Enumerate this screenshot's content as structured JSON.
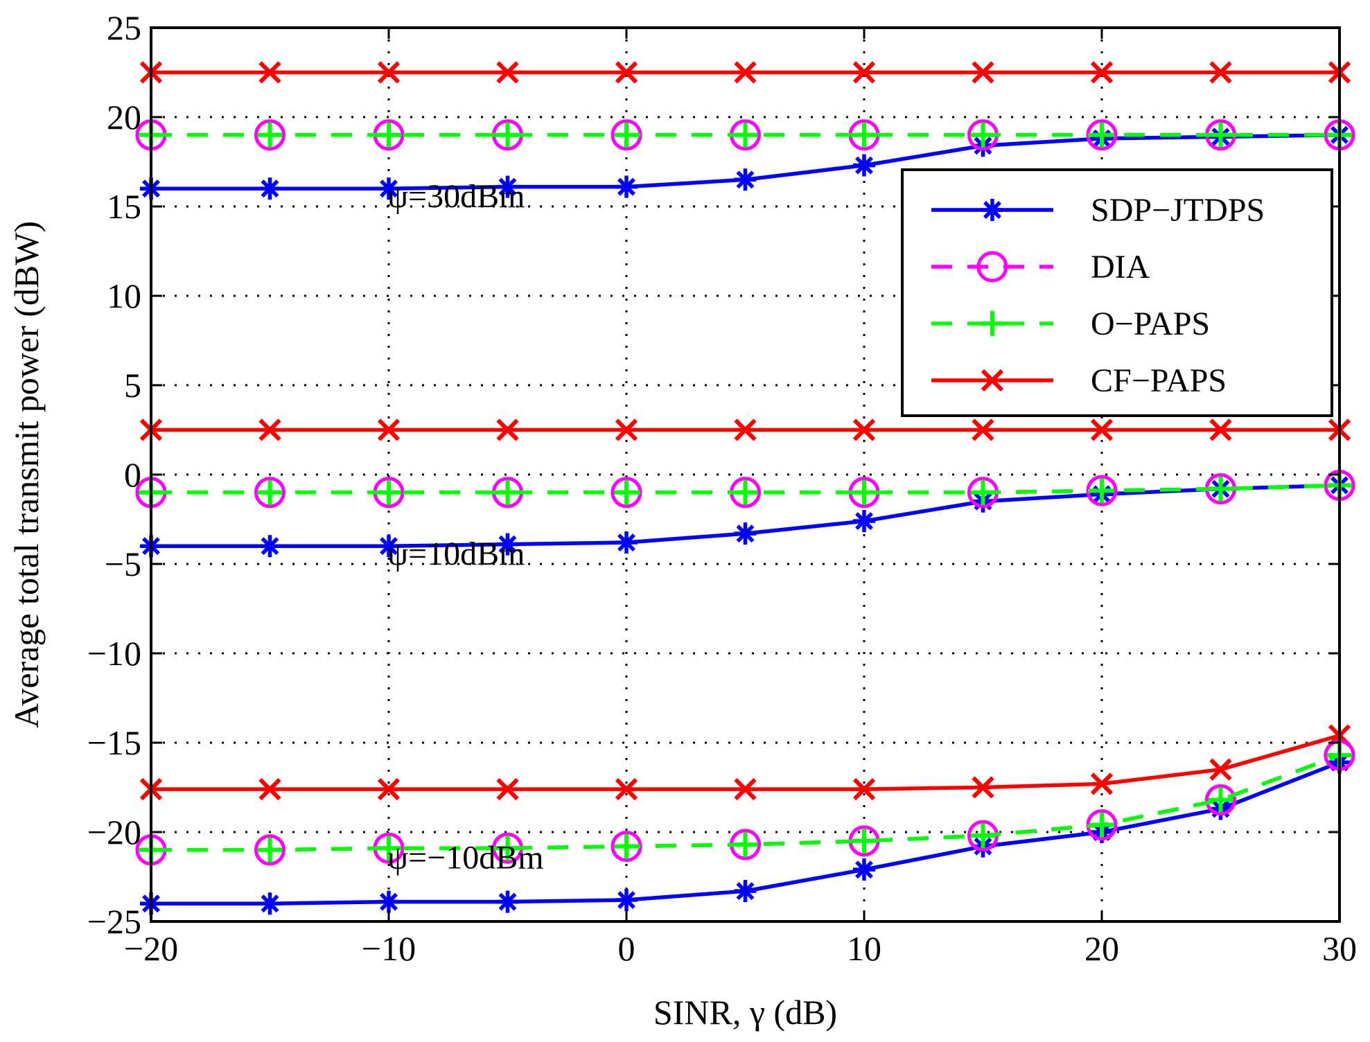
{
  "chart_data": {
    "type": "line",
    "title": "",
    "xlabel": "SINR, γ (dB)",
    "ylabel": "Average total transmit power (dBW)",
    "xlim": [
      -20,
      30
    ],
    "ylim": [
      -25,
      25
    ],
    "xticks": [
      -20,
      -10,
      0,
      10,
      20,
      30
    ],
    "yticks": [
      -25,
      -20,
      -15,
      -10,
      -5,
      0,
      5,
      10,
      15,
      20,
      25
    ],
    "xtick_labels": [
      "−20",
      "−10",
      "0",
      "10",
      "20",
      "30"
    ],
    "ytick_labels": [
      "−25",
      "−20",
      "−15",
      "−10",
      "−5",
      "0",
      "5",
      "10",
      "15",
      "20",
      "25"
    ],
    "grid": true,
    "legend_position": "top-right",
    "x": [
      -20,
      -15,
      -10,
      -5,
      0,
      5,
      10,
      15,
      20,
      25,
      30
    ],
    "series": [
      {
        "name": "SDP−JTDPS",
        "color": "#0000ff",
        "marker": "asterisk",
        "dash": "solid",
        "group": "ψ=30dBm",
        "values": [
          16.0,
          16.0,
          16.0,
          16.1,
          16.1,
          16.5,
          17.3,
          18.4,
          18.8,
          18.9,
          19.0
        ]
      },
      {
        "name": "DIA",
        "color": "#ff00ff",
        "marker": "circle",
        "dash": "dashed",
        "group": "ψ=30dBm",
        "values": [
          19.0,
          19.0,
          19.0,
          19.0,
          19.0,
          19.0,
          19.0,
          19.0,
          19.0,
          19.0,
          19.0
        ]
      },
      {
        "name": "O−PAPS",
        "color": "#00ff00",
        "marker": "plus",
        "dash": "dashed",
        "group": "ψ=30dBm",
        "values": [
          19.0,
          19.0,
          19.0,
          19.0,
          19.0,
          19.0,
          19.0,
          19.0,
          19.0,
          19.0,
          19.0
        ]
      },
      {
        "name": "CF−PAPS",
        "color": "#ff0000",
        "marker": "x",
        "dash": "solid",
        "group": "ψ=30dBm",
        "values": [
          22.5,
          22.5,
          22.5,
          22.5,
          22.5,
          22.5,
          22.5,
          22.5,
          22.5,
          22.5,
          22.5
        ]
      },
      {
        "name": "SDP−JTDPS",
        "color": "#0000ff",
        "marker": "asterisk",
        "dash": "solid",
        "group": "ψ=10dBm",
        "values": [
          -4.0,
          -4.0,
          -4.0,
          -3.9,
          -3.8,
          -3.3,
          -2.6,
          -1.5,
          -1.1,
          -0.8,
          -0.6
        ]
      },
      {
        "name": "DIA",
        "color": "#ff00ff",
        "marker": "circle",
        "dash": "dashed",
        "group": "ψ=10dBm",
        "values": [
          -1.0,
          -1.0,
          -1.0,
          -1.0,
          -1.0,
          -1.0,
          -1.0,
          -1.0,
          -0.9,
          -0.8,
          -0.6
        ]
      },
      {
        "name": "O−PAPS",
        "color": "#00ff00",
        "marker": "plus",
        "dash": "dashed",
        "group": "ψ=10dBm",
        "values": [
          -1.0,
          -1.0,
          -1.0,
          -1.0,
          -1.0,
          -1.0,
          -1.0,
          -1.0,
          -0.9,
          -0.8,
          -0.6
        ]
      },
      {
        "name": "CF−PAPS",
        "color": "#ff0000",
        "marker": "x",
        "dash": "solid",
        "group": "ψ=10dBm",
        "values": [
          2.5,
          2.5,
          2.5,
          2.5,
          2.5,
          2.5,
          2.5,
          2.5,
          2.5,
          2.5,
          2.5
        ]
      },
      {
        "name": "SDP−JTDPS",
        "color": "#0000ff",
        "marker": "asterisk",
        "dash": "solid",
        "group": "ψ=−10dBm",
        "values": [
          -24.0,
          -24.0,
          -23.9,
          -23.9,
          -23.8,
          -23.3,
          -22.1,
          -20.8,
          -20.0,
          -18.7,
          -16.1
        ]
      },
      {
        "name": "DIA",
        "color": "#ff00ff",
        "marker": "circle",
        "dash": "dashed",
        "group": "ψ=−10dBm",
        "values": [
          -21.0,
          -21.0,
          -20.9,
          -20.9,
          -20.8,
          -20.7,
          -20.5,
          -20.2,
          -19.6,
          -18.2,
          -15.7
        ]
      },
      {
        "name": "O−PAPS",
        "color": "#00ff00",
        "marker": "plus",
        "dash": "dashed",
        "group": "ψ=−10dBm",
        "values": [
          -21.0,
          -21.0,
          -20.9,
          -20.9,
          -20.8,
          -20.7,
          -20.5,
          -20.2,
          -19.6,
          -18.2,
          -15.7
        ]
      },
      {
        "name": "CF−PAPS",
        "color": "#ff0000",
        "marker": "x",
        "dash": "solid",
        "group": "ψ=−10dBm",
        "values": [
          -17.6,
          -17.6,
          -17.6,
          -17.6,
          -17.6,
          -17.6,
          -17.6,
          -17.5,
          -17.3,
          -16.5,
          -14.6
        ]
      }
    ],
    "legend": [
      "SDP−JTDPS",
      "DIA",
      "O−PAPS",
      "CF−PAPS"
    ],
    "annotations": [
      {
        "text": "ψ=30dBm",
        "x": -10,
        "y": 15.5
      },
      {
        "text": "ψ=10dBm",
        "x": -10,
        "y": -4.5
      },
      {
        "text": "ψ=−10dBm",
        "x": -10,
        "y": -21.5
      }
    ]
  }
}
